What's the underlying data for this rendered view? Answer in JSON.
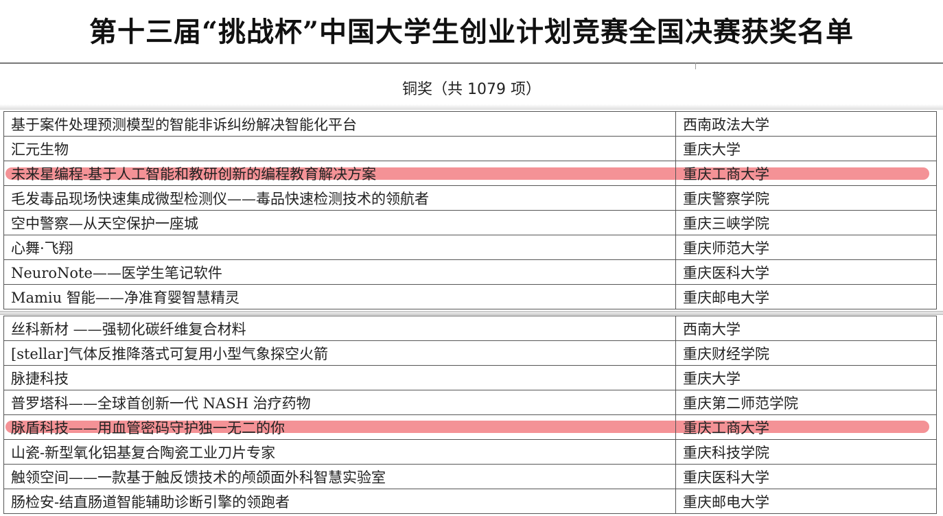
{
  "title": "第十三届“挑战杯”中国大学生创业计划竞赛全国决赛获奖名单",
  "section_title": "铜奖（共 1079 项）",
  "highlight_color": "#f06e73",
  "table1": [
    {
      "project": "基于案件处理预测模型的智能非诉纠纷解决智能化平台",
      "school": "西南政法大学"
    },
    {
      "project": "汇元生物",
      "school": "重庆大学"
    },
    {
      "project": "未来星编程-基于人工智能和教研创新的编程教育解决方案",
      "school": "重庆工商大学",
      "highlighted": true
    },
    {
      "project": "毛发毒品现场快速集成微型检测仪——毒品快速检测技术的领航者",
      "school": "重庆警察学院"
    },
    {
      "project": "空中警察—从天空保护一座城",
      "school": "重庆三峡学院"
    },
    {
      "project": "心舞·飞翔",
      "school": "重庆师范大学"
    },
    {
      "project": "NeuroNote——医学生笔记软件",
      "school": "重庆医科大学"
    },
    {
      "project": "Mamiu 智能——净准育婴智慧精灵",
      "school": "重庆邮电大学"
    }
  ],
  "table2": [
    {
      "project": "丝科新材 ——强韧化碳纤维复合材料",
      "school": "西南大学"
    },
    {
      "project": "[stellar]气体反推降落式可复用小型气象探空火箭",
      "school": "重庆财经学院"
    },
    {
      "project": "脉捷科技",
      "school": "重庆大学"
    },
    {
      "project": "普罗塔科——全球首创新一代 NASH 治疗药物",
      "school": "重庆第二师范学院"
    },
    {
      "project": "脉盾科技——用血管密码守护独一无二的你",
      "school": "重庆工商大学",
      "highlighted": true
    },
    {
      "project": "山瓷-新型氧化铝基复合陶瓷工业刀片专家",
      "school": "重庆科技学院"
    },
    {
      "project": "触领空间——一款基于触反馈技术的颅颌面外科智慧实验室",
      "school": "重庆医科大学"
    },
    {
      "project": "肠检安-结直肠道智能辅助诊断引擎的领跑者",
      "school": "重庆邮电大学"
    }
  ]
}
